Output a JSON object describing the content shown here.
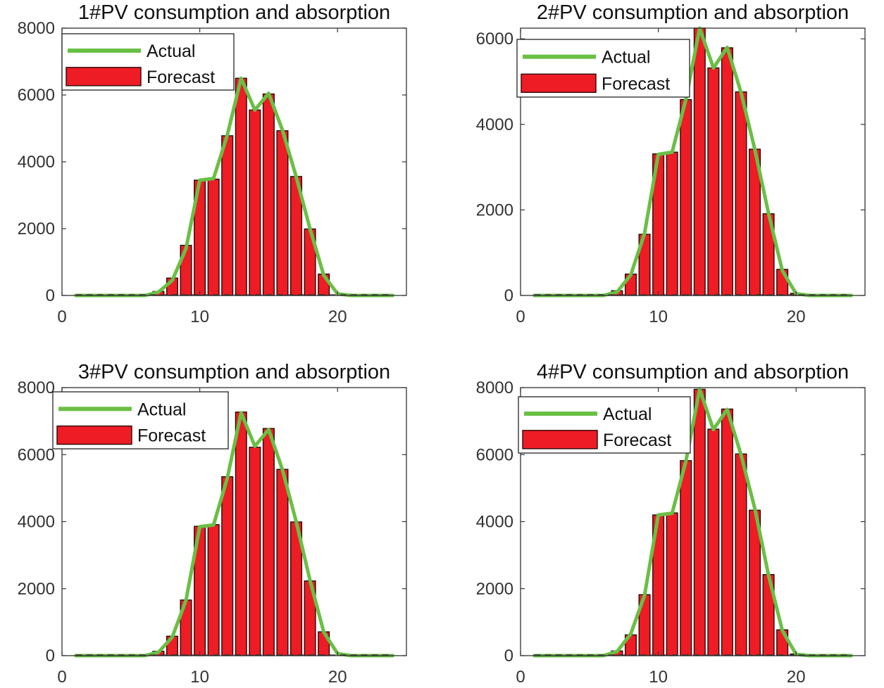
{
  "figure": {
    "background": "#ffffff"
  },
  "style": {
    "bar_color": "#ee1c24",
    "bar_edge": "#2a0a0a",
    "line_color": "#6abf45",
    "axis_color": "#333333"
  },
  "chart_data": [
    {
      "type": "bar",
      "title": "1#PV consumption and absorption",
      "xlabel": "",
      "ylabel": "",
      "xlim": [
        0,
        25
      ],
      "ylim": [
        0,
        8000
      ],
      "xticks": [
        0,
        10,
        20
      ],
      "yticks": [
        0,
        2000,
        4000,
        6000,
        8000
      ],
      "legend": [
        "Actual",
        "Forecast"
      ],
      "legend_position": "top-left",
      "x": [
        1,
        2,
        3,
        4,
        5,
        6,
        7,
        8,
        9,
        10,
        11,
        12,
        13,
        14,
        15,
        16,
        17,
        18,
        19,
        20,
        21,
        22,
        23,
        24
      ],
      "series": [
        {
          "name": "Actual",
          "type": "line",
          "values": [
            0,
            0,
            0,
            0,
            0,
            0,
            100,
            450,
            1400,
            3450,
            3500,
            4800,
            6500,
            5550,
            6050,
            4950,
            3550,
            2000,
            600,
            50,
            0,
            0,
            0,
            0
          ]
        },
        {
          "name": "Forecast",
          "type": "bar",
          "values": [
            0,
            0,
            0,
            0,
            0,
            20,
            120,
            520,
            1500,
            3450,
            3480,
            4780,
            6500,
            5550,
            6030,
            4930,
            3560,
            1990,
            640,
            0,
            0,
            0,
            0,
            0
          ]
        }
      ]
    },
    {
      "type": "bar",
      "title": "2#PV consumption and absorption",
      "xlabel": "",
      "ylabel": "",
      "xlim": [
        0,
        25
      ],
      "ylim": [
        0,
        6250
      ],
      "xticks": [
        0,
        10,
        20
      ],
      "yticks": [
        0,
        2000,
        4000,
        6000
      ],
      "legend": [
        "Actual",
        "Forecast"
      ],
      "legend_position": "top-left",
      "x": [
        1,
        2,
        3,
        4,
        5,
        6,
        7,
        8,
        9,
        10,
        11,
        12,
        13,
        14,
        15,
        16,
        17,
        18,
        19,
        20,
        21,
        22,
        23,
        24
      ],
      "series": [
        {
          "name": "Actual",
          "type": "line",
          "values": [
            0,
            0,
            0,
            0,
            0,
            0,
            80,
            480,
            1450,
            3300,
            3350,
            4580,
            6250,
            5320,
            5800,
            4750,
            3420,
            1920,
            580,
            40,
            0,
            0,
            0,
            0
          ]
        },
        {
          "name": "Forecast",
          "type": "bar",
          "values": [
            0,
            0,
            0,
            0,
            0,
            30,
            110,
            500,
            1430,
            3310,
            3350,
            4580,
            6250,
            5320,
            5790,
            4760,
            3420,
            1910,
            610,
            50,
            0,
            0,
            0,
            0
          ]
        }
      ]
    },
    {
      "type": "bar",
      "title": "3#PV consumption and absorption",
      "xlabel": "",
      "ylabel": "",
      "xlim": [
        0,
        25
      ],
      "ylim": [
        0,
        8000
      ],
      "xticks": [
        0,
        10,
        20
      ],
      "yticks": [
        0,
        2000,
        4000,
        6000,
        8000
      ],
      "legend": [
        "Actual",
        "Forecast"
      ],
      "legend_position": "top-left",
      "x": [
        1,
        2,
        3,
        4,
        5,
        6,
        7,
        8,
        9,
        10,
        11,
        12,
        13,
        14,
        15,
        16,
        17,
        18,
        19,
        20,
        21,
        22,
        23,
        24
      ],
      "series": [
        {
          "name": "Actual",
          "type": "line",
          "values": [
            0,
            0,
            0,
            0,
            0,
            0,
            100,
            550,
            1650,
            3850,
            3900,
            5300,
            7250,
            6250,
            6750,
            5550,
            4000,
            2250,
            700,
            60,
            0,
            0,
            0,
            0
          ]
        },
        {
          "name": "Forecast",
          "type": "bar",
          "values": [
            0,
            0,
            0,
            0,
            0,
            20,
            130,
            580,
            1660,
            3860,
            3910,
            5340,
            7270,
            6220,
            6780,
            5560,
            3990,
            2230,
            710,
            0,
            0,
            0,
            0,
            0
          ]
        }
      ]
    },
    {
      "type": "bar",
      "title": "4#PV consumption and absorption",
      "xlabel": "",
      "ylabel": "",
      "xlim": [
        0,
        25
      ],
      "ylim": [
        0,
        8000
      ],
      "xticks": [
        0,
        10,
        20
      ],
      "yticks": [
        0,
        2000,
        4000,
        6000,
        8000
      ],
      "legend": [
        "Actual",
        "Forecast"
      ],
      "legend_position": "top-left",
      "x": [
        1,
        2,
        3,
        4,
        5,
        6,
        7,
        8,
        9,
        10,
        11,
        12,
        13,
        14,
        15,
        16,
        17,
        18,
        19,
        20,
        21,
        22,
        23,
        24
      ],
      "series": [
        {
          "name": "Actual",
          "type": "line",
          "values": [
            0,
            0,
            0,
            0,
            0,
            0,
            120,
            650,
            1800,
            4200,
            4250,
            5800,
            7950,
            6750,
            7350,
            6000,
            4400,
            2400,
            750,
            40,
            0,
            0,
            0,
            0
          ]
        },
        {
          "name": "Forecast",
          "type": "bar",
          "values": [
            0,
            0,
            0,
            0,
            0,
            30,
            140,
            620,
            1820,
            4200,
            4260,
            5820,
            7950,
            6760,
            7360,
            6020,
            4340,
            2420,
            770,
            50,
            0,
            0,
            0,
            0
          ]
        }
      ]
    }
  ]
}
